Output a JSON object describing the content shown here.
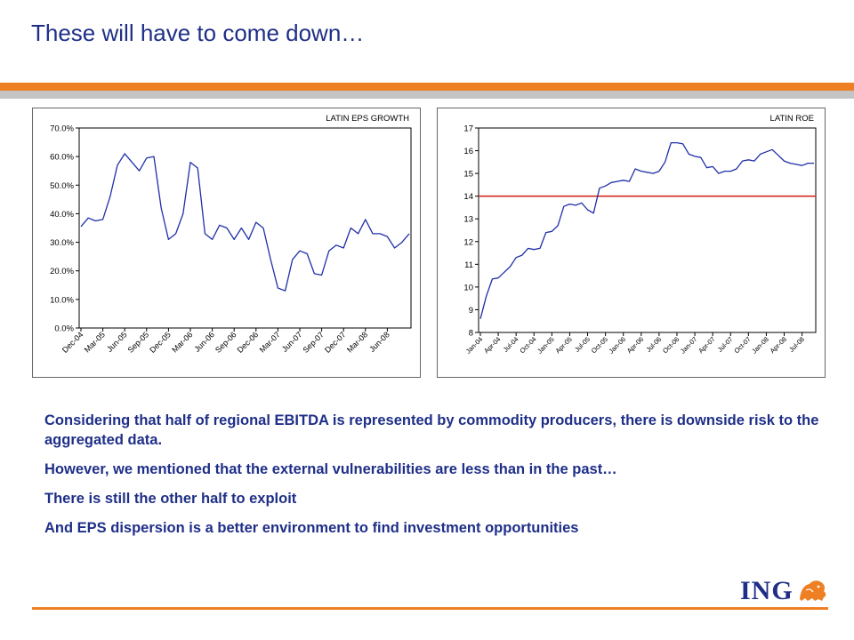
{
  "slide": {
    "title": "These will have to come down…"
  },
  "bullets": [
    "Considering that half of regional EBITDA is represented by commodity producers, there is downside risk to the aggregated data.",
    "However, we mentioned that the external vulnerabilities are less than in the past…",
    "There is still the other half to exploit",
    "And EPS dispersion is a better environment to find investment opportunities"
  ],
  "logo": {
    "text": "ING",
    "icon": "lion-icon",
    "color": "#ee7f22"
  },
  "colors": {
    "title": "#1f2f88",
    "accent": "#ee7f22",
    "band": "#c4c4c4",
    "series": "#1f2fa8",
    "threshold": "#d42a1e"
  },
  "chart_data": [
    {
      "type": "line",
      "title": "LATIN EPS GROWTH",
      "xlabel": "",
      "ylabel": "",
      "ylim": [
        0,
        0.7
      ],
      "y_ticks": [
        "0.0%",
        "10.0%",
        "20.0%",
        "30.0%",
        "40.0%",
        "50.0%",
        "60.0%",
        "70.0%"
      ],
      "x_ticks": [
        "Dec-04",
        "Mar-05",
        "Jun-05",
        "Sep-05",
        "Dec-05",
        "Mar-06",
        "Jun-06",
        "Sep-06",
        "Dec-06",
        "Mar-07",
        "Jun-07",
        "Sep-07",
        "Dec-07",
        "Mar-08",
        "Jun-08"
      ],
      "grid": false,
      "legend": "none",
      "series": [
        {
          "x": [
            "Dec-04",
            "Jan-05",
            "Feb-05",
            "Mar-05",
            "Apr-05",
            "May-05",
            "Jun-05",
            "Jul-05",
            "Aug-05",
            "Sep-05",
            "Oct-05",
            "Nov-05",
            "Dec-05",
            "Jan-06",
            "Feb-06",
            "Mar-06",
            "Apr-06",
            "May-06",
            "Jun-06",
            "Jul-06",
            "Aug-06",
            "Sep-06",
            "Oct-06",
            "Nov-06",
            "Dec-06",
            "Jan-07",
            "Feb-07",
            "Mar-07",
            "Apr-07",
            "May-07",
            "Jun-07",
            "Jul-07",
            "Aug-07",
            "Sep-07",
            "Oct-07",
            "Nov-07",
            "Dec-07",
            "Jan-08",
            "Feb-08",
            "Mar-08",
            "Apr-08",
            "May-08",
            "Jun-08",
            "Jul-08",
            "Aug-08",
            "Sep-08"
          ],
          "values": [
            0.355,
            0.385,
            0.375,
            0.38,
            0.46,
            0.57,
            0.61,
            0.58,
            0.55,
            0.595,
            0.6,
            0.42,
            0.31,
            0.33,
            0.4,
            0.58,
            0.56,
            0.33,
            0.31,
            0.36,
            0.35,
            0.31,
            0.35,
            0.31,
            0.37,
            0.35,
            0.24,
            0.14,
            0.13,
            0.24,
            0.27,
            0.26,
            0.19,
            0.185,
            0.27,
            0.29,
            0.28,
            0.35,
            0.33,
            0.38,
            0.33,
            0.33,
            0.32,
            0.28,
            0.3,
            0.33
          ]
        }
      ]
    },
    {
      "type": "line",
      "title": "LATIN ROE",
      "xlabel": "",
      "ylabel": "",
      "ylim": [
        8,
        17
      ],
      "y_ticks": [
        "8",
        "9",
        "10",
        "11",
        "12",
        "13",
        "14",
        "15",
        "16",
        "17"
      ],
      "x_ticks": [
        "Jan-04",
        "Apr-04",
        "Jul-04",
        "Oct-04",
        "Jan-05",
        "Apr-05",
        "Jul-05",
        "Oct-05",
        "Jan-06",
        "Apr-06",
        "Jul-06",
        "Oct-06",
        "Jan-07",
        "Apr-07",
        "Jul-07",
        "Oct-07",
        "Jan-08",
        "Apr-08",
        "Jul-08"
      ],
      "grid": false,
      "legend": "none",
      "threshold": 14,
      "series": [
        {
          "x": [
            "Jan-04",
            "Feb-04",
            "Mar-04",
            "Apr-04",
            "May-04",
            "Jun-04",
            "Jul-04",
            "Aug-04",
            "Sep-04",
            "Oct-04",
            "Nov-04",
            "Dec-04",
            "Jan-05",
            "Feb-05",
            "Mar-05",
            "Apr-05",
            "May-05",
            "Jun-05",
            "Jul-05",
            "Aug-05",
            "Sep-05",
            "Oct-05",
            "Nov-05",
            "Dec-05",
            "Jan-06",
            "Feb-06",
            "Mar-06",
            "Apr-06",
            "May-06",
            "Jun-06",
            "Jul-06",
            "Aug-06",
            "Sep-06",
            "Oct-06",
            "Nov-06",
            "Dec-06",
            "Jan-07",
            "Feb-07",
            "Mar-07",
            "Apr-07",
            "May-07",
            "Jun-07",
            "Jul-07",
            "Aug-07",
            "Sep-07",
            "Oct-07",
            "Nov-07",
            "Dec-07",
            "Jan-08",
            "Feb-08",
            "Mar-08",
            "Apr-08",
            "May-08",
            "Jun-08",
            "Jul-08",
            "Aug-08",
            "Sep-08"
          ],
          "values": [
            8.6,
            9.6,
            10.35,
            10.4,
            10.65,
            10.9,
            11.3,
            11.4,
            11.7,
            11.65,
            11.7,
            12.4,
            12.45,
            12.7,
            13.55,
            13.65,
            13.6,
            13.7,
            13.4,
            13.25,
            14.35,
            14.45,
            14.6,
            14.65,
            14.7,
            14.65,
            15.2,
            15.1,
            15.05,
            15.0,
            15.1,
            15.5,
            16.35,
            16.35,
            16.3,
            15.85,
            15.75,
            15.7,
            15.25,
            15.3,
            15.0,
            15.1,
            15.1,
            15.2,
            15.55,
            15.6,
            15.55,
            15.85,
            15.95,
            16.05,
            15.8,
            15.55,
            15.45,
            15.4,
            15.35,
            15.45,
            15.45
          ]
        }
      ]
    }
  ]
}
